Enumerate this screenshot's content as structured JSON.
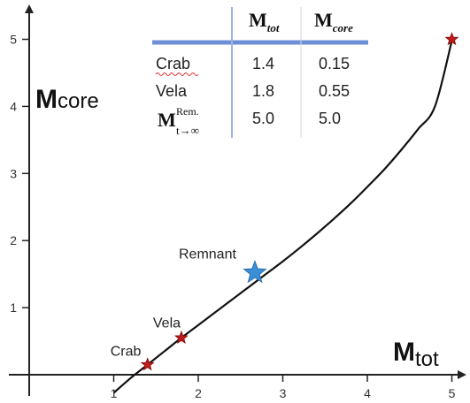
{
  "chart_data": {
    "type": "scatter",
    "xlabel": {
      "main": "M",
      "sub": "tot"
    },
    "ylabel": {
      "main": "M",
      "sub": "core"
    },
    "xlim": [
      0,
      5.2
    ],
    "ylim": [
      0,
      5.3
    ],
    "xticks": [
      "1",
      "2",
      "3",
      "4",
      "5"
    ],
    "yticks": [
      "1",
      "2",
      "3",
      "4",
      "5"
    ],
    "grid": false,
    "curve": {
      "x": [
        1.0,
        1.2,
        1.4,
        1.6,
        1.8,
        2.0,
        2.2,
        2.4,
        2.6,
        2.8,
        3.0,
        3.2,
        3.4,
        3.6,
        3.8,
        4.0,
        4.2,
        4.4,
        4.6,
        4.8,
        5.0
      ],
      "y": [
        -0.27,
        -0.05,
        0.15,
        0.35,
        0.55,
        0.74,
        0.93,
        1.12,
        1.31,
        1.5,
        1.69,
        1.89,
        2.1,
        2.32,
        2.55,
        2.8,
        3.06,
        3.35,
        3.66,
        4.0,
        4.98
      ]
    },
    "points": [
      {
        "label": "Crab",
        "x": 1.4,
        "y": 0.15,
        "marker": "small-star",
        "color": "#c21a1a"
      },
      {
        "label": "Vela",
        "x": 1.8,
        "y": 0.55,
        "marker": "small-star",
        "color": "#c21a1a"
      },
      {
        "label": "Remnant",
        "x": 2.67,
        "y": 1.52,
        "marker": "large-star",
        "color": "#3a8fd6"
      },
      {
        "label": "",
        "x": 5.0,
        "y": 5.0,
        "marker": "small-star",
        "color": "#c21a1a"
      }
    ],
    "table": {
      "headers": [
        {
          "main": "M",
          "sub": "tot"
        },
        {
          "main": "M",
          "sub": "core"
        }
      ],
      "rows": [
        {
          "label": "Crab",
          "values": [
            "1.4",
            "0.15"
          ]
        },
        {
          "label": "Vela",
          "values": [
            "1.8",
            "0.55"
          ]
        },
        {
          "label": {
            "main": "M",
            "sup": "Rem.",
            "sub": "t→∞"
          },
          "values": [
            "5.0",
            "5.0"
          ]
        }
      ]
    },
    "colors": {
      "curve": "#111111",
      "axis": "#222222",
      "table_rule": "#6d8fd8",
      "table_divider": "#9fb4e0"
    }
  }
}
